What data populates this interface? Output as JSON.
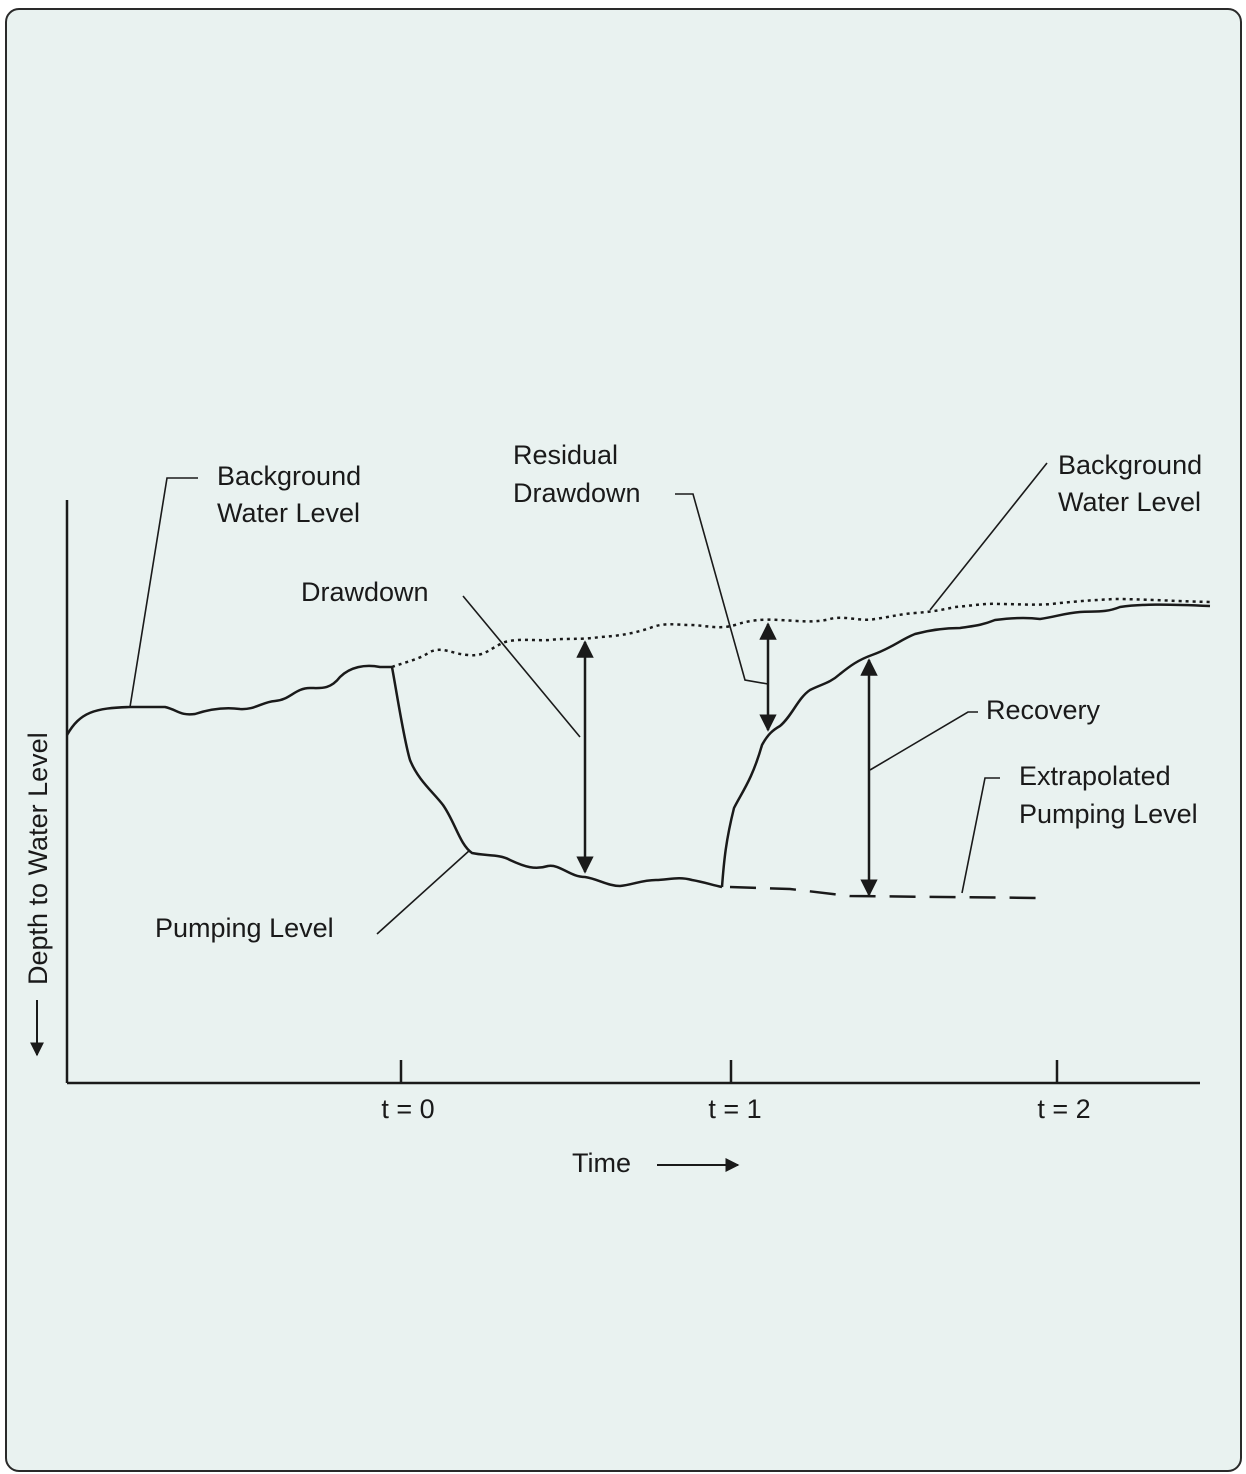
{
  "diagram": {
    "y_axis_label": "Depth to Water Level",
    "x_axis_label": "Time",
    "ticks": [
      "t = 0",
      "t = 1",
      "t = 2"
    ],
    "callouts": {
      "background_left": [
        "Background",
        "Water Level"
      ],
      "residual": [
        "Residual",
        "Drawdown"
      ],
      "background_right": [
        "Background",
        "Water Level"
      ],
      "drawdown": "Drawdown",
      "recovery": "Recovery",
      "extrapolated": [
        "Extrapolated",
        "Pumping Level"
      ],
      "pumping": "Pumping Level"
    },
    "colors": {
      "background": "#e9f2f0",
      "ink": "#1a1a1a"
    }
  }
}
